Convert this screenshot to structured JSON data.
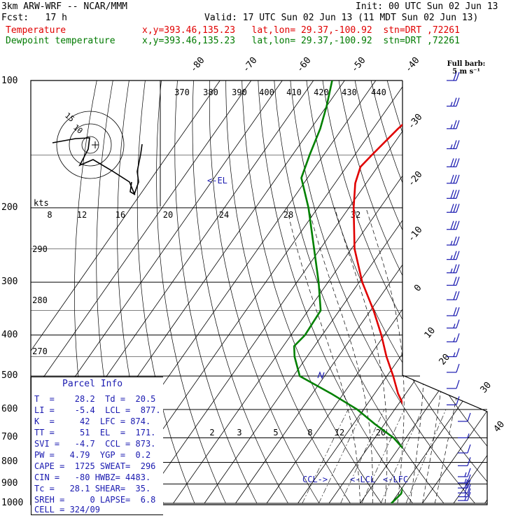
{
  "header": {
    "model": "3km ARW-WRF -- NCAR/MMM",
    "init": "Init: 00 UTC Sun 02 Jun 13",
    "fcst": "Fcst:   17 h",
    "valid": "Valid: 17 UTC Sun 02 Jun 13 (11 MDT Sun 02 Jun 13)",
    "temp_label": "Temperature",
    "dew_label": "Dewpoint temperature",
    "temp_info": "x,y=393.46,135.23   lat,lon= 29.37,-100.92  stn=DRT ,72261",
    "dew_info": "x,y=393.46,135.23   lat,lon= 29.37,-100.92  stn=DRT ,72261"
  },
  "barb_caption": [
    "Full barb:",
    "5 m s⁻¹"
  ],
  "hodograph": {
    "unit_label": "kts",
    "ring_labels": [
      "10",
      "15"
    ]
  },
  "parcel_info": {
    "title": "Parcel Info",
    "rows": [
      "T  =    28.2  Td =  20.5",
      "LI =    -5.4  LCL =  877.",
      "K  =     42  LFC = 874.",
      "TT =     51  EL  =  171.",
      "SVI =   -4.7  CCL = 873.",
      "PW =   4.79  YGP =  0.2",
      "CAPE =  1725 SWEAT=  296",
      "CIN =   -80 HWBZ= 4483.",
      "Tc =   28.1 SHEAR=  35.",
      "SREH =     0 LAPSE=  6.8",
      "CELL = 324/09"
    ]
  },
  "level_labels": {
    "el": "<-EL",
    "ccl": "CCL->",
    "lcl": "<-LCL",
    "lfc": "<-LFC"
  },
  "colors": {
    "temperature": "#e00000",
    "dewpoint": "#008000",
    "barbs": "#1a1ab0",
    "axes": "#000000"
  },
  "chart_data": {
    "type": "line",
    "title": "",
    "y_axis": "pressure (hPa), log scale",
    "pressure_ticks": [
      100,
      200,
      300,
      400,
      500,
      600,
      700,
      800,
      900,
      1000
    ],
    "isotherm_labels": [
      "-80",
      "-70",
      "-60",
      "-50",
      "-40",
      "-30",
      "-20",
      "-10",
      "0",
      "10",
      "20",
      "30",
      "40"
    ],
    "theta_labels": [
      "370",
      "380",
      "390",
      "400",
      "410",
      "420",
      "430",
      "440"
    ],
    "mixing_ratio_top_labels": [
      "8",
      "12",
      "16",
      "20",
      "24",
      "28",
      "32"
    ],
    "mixing_ratio_low_labels": [
      "2",
      "3",
      "5",
      "8",
      "12",
      "20"
    ],
    "theta_side_labels": [
      "290",
      "280",
      "270"
    ],
    "series": [
      {
        "name": "Temperature",
        "points": [
          [
            1000,
            34.5
          ],
          [
            975,
            32.0
          ],
          [
            950,
            29.5
          ],
          [
            925,
            28.6
          ],
          [
            900,
            27.3
          ],
          [
            875,
            26.5
          ],
          [
            850,
            25.4
          ],
          [
            800,
            22.5
          ],
          [
            750,
            18.2
          ],
          [
            700,
            13.4
          ],
          [
            650,
            8.0
          ],
          [
            600,
            3.5
          ],
          [
            550,
            -2.5
          ],
          [
            500,
            -8.0
          ],
          [
            450,
            -14.5
          ],
          [
            400,
            -21.0
          ],
          [
            350,
            -29.0
          ],
          [
            300,
            -39.0
          ],
          [
            250,
            -49.0
          ],
          [
            200,
            -58.5
          ],
          [
            175,
            -63.5
          ],
          [
            160,
            -65.5
          ],
          [
            150,
            -64.5
          ],
          [
            130,
            -62.0
          ],
          [
            115,
            -59.0
          ],
          [
            100,
            -55.5
          ]
        ]
      },
      {
        "name": "Dewpoint temperature",
        "points": [
          [
            1000,
            20.0
          ],
          [
            975,
            20.5
          ],
          [
            950,
            21.0
          ],
          [
            925,
            20.5
          ],
          [
            900,
            19.8
          ],
          [
            875,
            19.5
          ],
          [
            850,
            18.5
          ],
          [
            800,
            16.5
          ],
          [
            750,
            12.5
          ],
          [
            700,
            6.0
          ],
          [
            650,
            -3.0
          ],
          [
            600,
            -12.0
          ],
          [
            550,
            -24.0
          ],
          [
            500,
            -38.0
          ],
          [
            450,
            -44.0
          ],
          [
            425,
            -46.5
          ],
          [
            400,
            -45.5
          ],
          [
            350,
            -46.0
          ],
          [
            300,
            -53.0
          ],
          [
            250,
            -62.0
          ],
          [
            200,
            -73.0
          ],
          [
            170,
            -82.0
          ],
          [
            150,
            -84.5
          ],
          [
            130,
            -87.0
          ],
          [
            115,
            -90.0
          ],
          [
            100,
            -94.0
          ]
        ]
      }
    ],
    "wind_profile": [
      {
        "p": 100,
        "spd": 20
      },
      {
        "p": 115,
        "spd": 25
      },
      {
        "p": 130,
        "spd": 25
      },
      {
        "p": 145,
        "spd": 25
      },
      {
        "p": 160,
        "spd": 30
      },
      {
        "p": 175,
        "spd": 30
      },
      {
        "p": 190,
        "spd": 30
      },
      {
        "p": 205,
        "spd": 30
      },
      {
        "p": 225,
        "spd": 30
      },
      {
        "p": 245,
        "spd": 25
      },
      {
        "p": 265,
        "spd": 25
      },
      {
        "p": 285,
        "spd": 25
      },
      {
        "p": 305,
        "spd": 20
      },
      {
        "p": 330,
        "spd": 20
      },
      {
        "p": 360,
        "spd": 20
      },
      {
        "p": 385,
        "spd": 15
      },
      {
        "p": 415,
        "spd": 15
      },
      {
        "p": 450,
        "spd": 15
      },
      {
        "p": 490,
        "spd": 10
      },
      {
        "p": 535,
        "spd": 10
      },
      {
        "p": 585,
        "spd": 10
      },
      {
        "p": 640,
        "spd": 10
      },
      {
        "p": 700,
        "spd": 5
      },
      {
        "p": 760,
        "spd": 10
      },
      {
        "p": 815,
        "spd": 10
      },
      {
        "p": 865,
        "spd": 15
      },
      {
        "p": 895,
        "spd": 15
      },
      {
        "p": 920,
        "spd": 20
      },
      {
        "p": 945,
        "spd": 20
      },
      {
        "p": 965,
        "spd": 15
      },
      {
        "p": 985,
        "spd": 15
      }
    ]
  }
}
